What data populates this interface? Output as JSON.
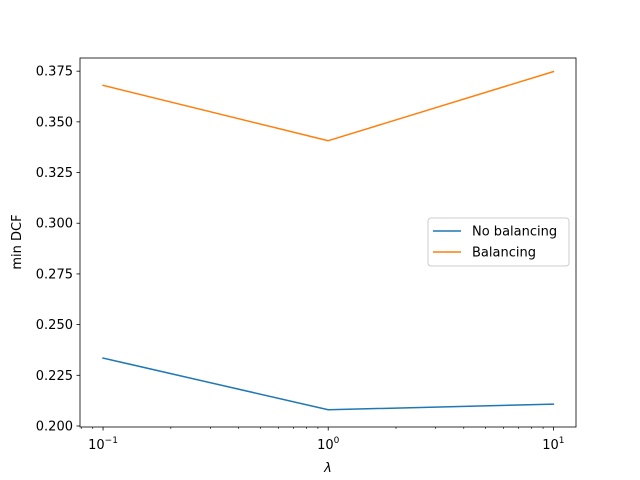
{
  "chart_data": {
    "type": "line",
    "xscale": "log",
    "x": [
      0.1,
      1,
      10
    ],
    "xlim": [
      0.079,
      12.6
    ],
    "ylim": [
      0.1995,
      0.3815
    ],
    "xticks": [
      {
        "value": 0.1,
        "base": "10",
        "exp": "−1"
      },
      {
        "value": 1,
        "base": "10",
        "exp": "0"
      },
      {
        "value": 10,
        "base": "10",
        "exp": "1"
      }
    ],
    "yticks": [
      0.2,
      0.225,
      0.25,
      0.275,
      0.3,
      0.325,
      0.35,
      0.375
    ],
    "ytick_labels": [
      "0.200",
      "0.225",
      "0.250",
      "0.275",
      "0.300",
      "0.325",
      "0.350",
      "0.375"
    ],
    "xlabel": "λ",
    "ylabel": "min DCF",
    "grid": false,
    "legend_position": "center-right",
    "series": [
      {
        "name": "No balancing",
        "color": "#1f77b4",
        "values": [
          0.2335,
          0.208,
          0.2108
        ]
      },
      {
        "name": "Balancing",
        "color": "#ff7f0e",
        "values": [
          0.368,
          0.3407,
          0.3748
        ]
      }
    ]
  }
}
